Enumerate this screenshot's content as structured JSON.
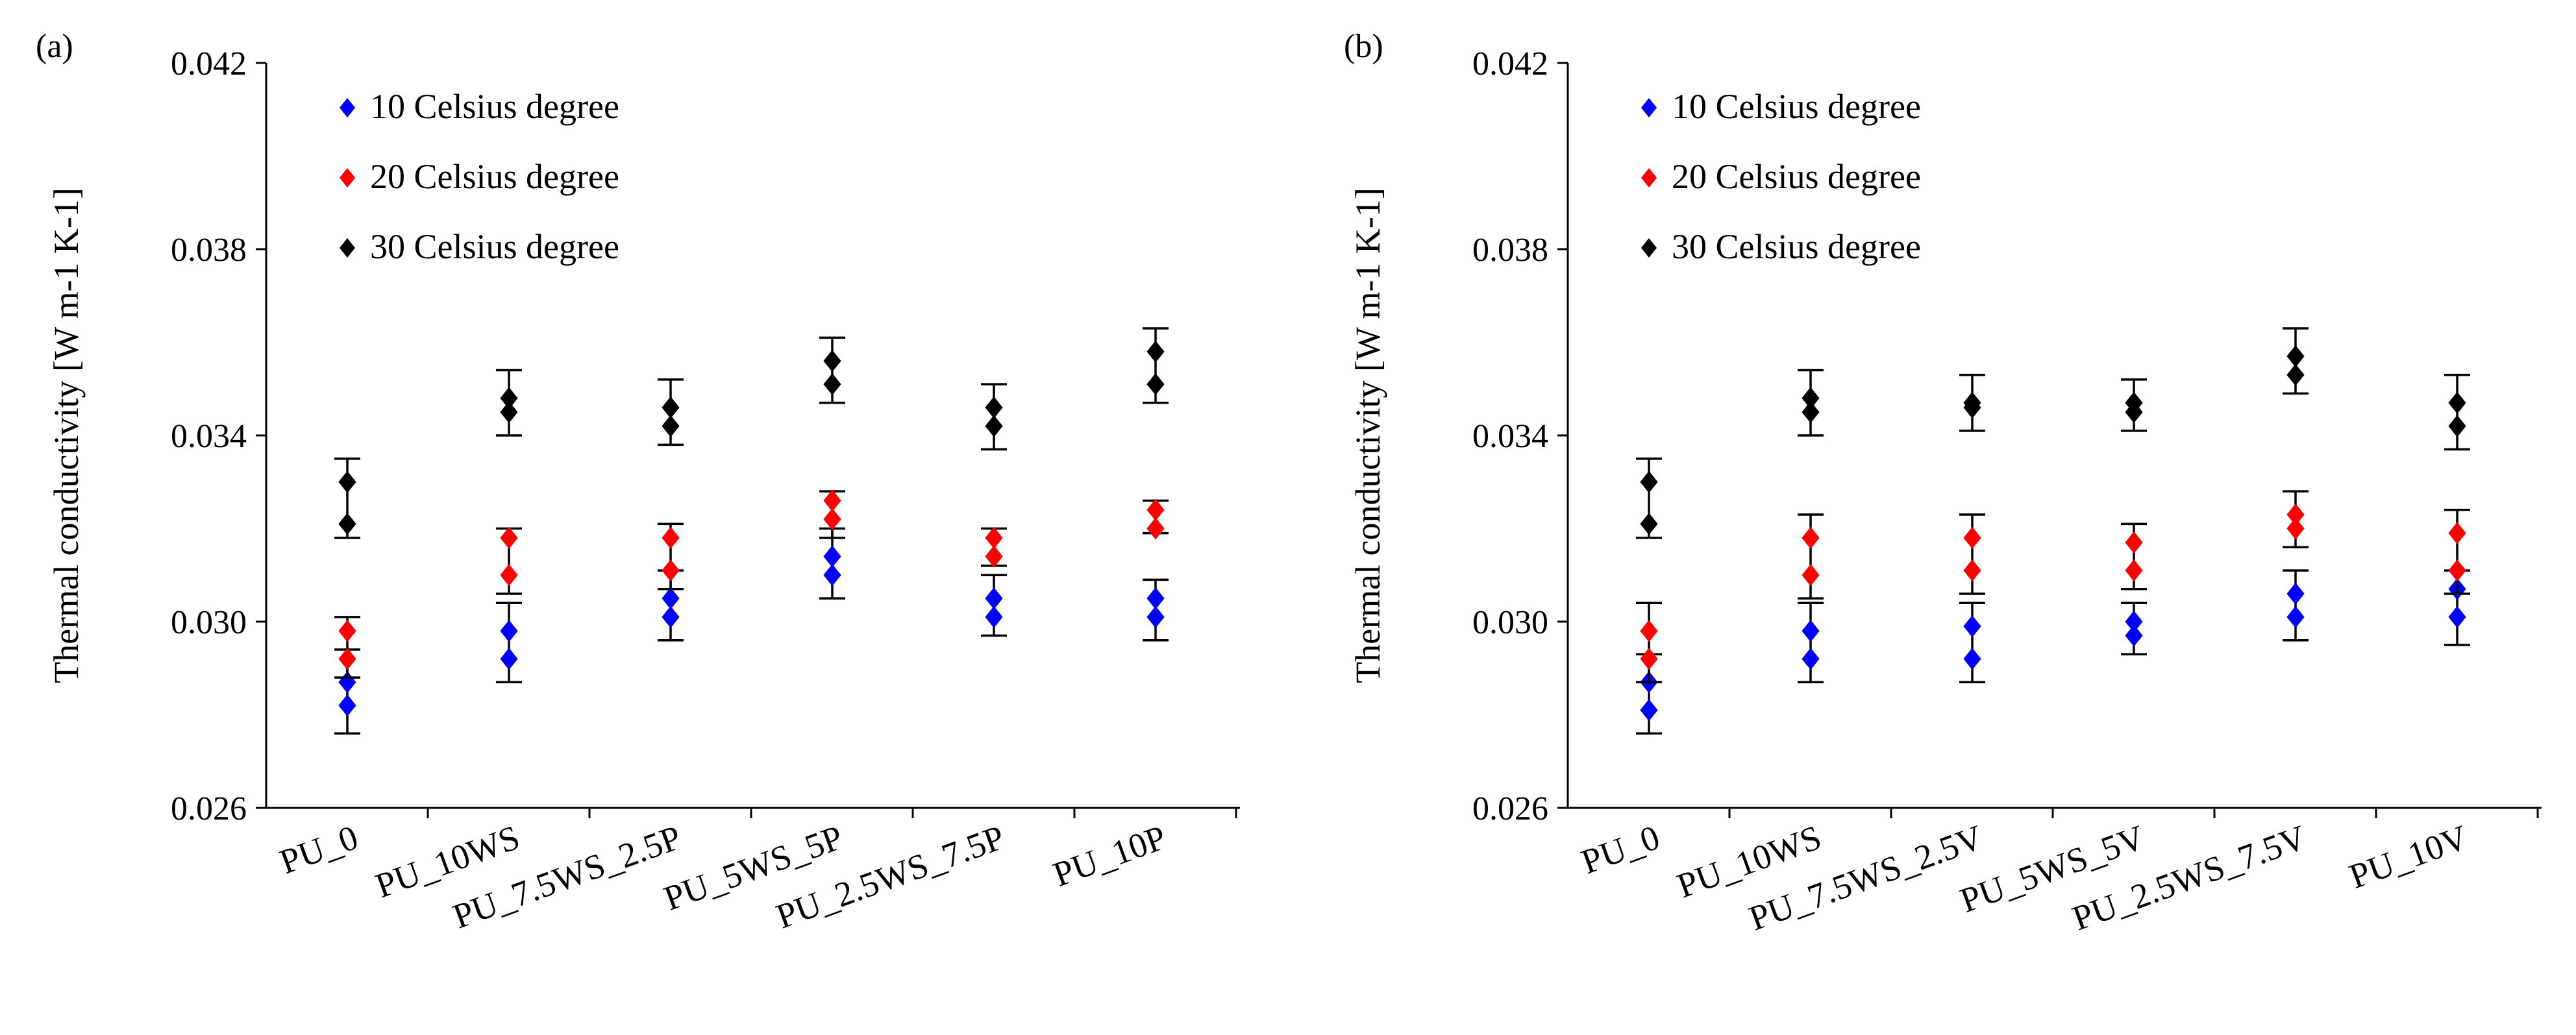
{
  "chart_data": [
    {
      "type": "scatter",
      "panel_label": "(a)",
      "title": "",
      "ylabel": "Thermal conductivity [W m-1 K-1]",
      "xlabel": "",
      "ylim": [
        0.026,
        0.042
      ],
      "yticks": [
        "0.026",
        "0.030",
        "0.034",
        "0.038",
        "0.042"
      ],
      "ytick_values": [
        0.026,
        0.03,
        0.034,
        0.038,
        0.042
      ],
      "categories": [
        "PU_0",
        "PU_10WS",
        "PU_7.5WS_2.5P",
        "PU_5WS_5P",
        "PU_2.5WS_7.5P",
        "PU_10P"
      ],
      "legend": {
        "position": "top-left"
      },
      "series": [
        {
          "name": "10 Celsius degree",
          "color": "#0000ff",
          "points": [
            [
              0.0282,
              0.0287
            ],
            [
              0.0292,
              0.0298
            ],
            [
              0.0301,
              0.0305
            ],
            [
              0.031,
              0.0314
            ],
            [
              0.0301,
              0.0305
            ],
            [
              0.0301,
              0.0305
            ]
          ],
          "errors": [
            [
              0.0276,
              0.0294
            ],
            [
              0.0287,
              0.0304
            ],
            [
              0.0296,
              0.0311
            ],
            [
              0.0305,
              0.032
            ],
            [
              0.0297,
              0.031
            ],
            [
              0.0296,
              0.0309
            ]
          ]
        },
        {
          "name": "20 Celsius degree",
          "color": "#ff0000",
          "points": [
            [
              0.0292,
              0.0298
            ],
            [
              0.031,
              0.0318
            ],
            [
              0.0311,
              0.0318
            ],
            [
              0.0322,
              0.0326
            ],
            [
              0.0314,
              0.0318
            ],
            [
              0.032,
              0.0324
            ]
          ],
          "errors": [
            [
              0.0288,
              0.0301
            ],
            [
              0.0306,
              0.032
            ],
            [
              0.0307,
              0.0321
            ],
            [
              0.0318,
              0.0328
            ],
            [
              0.0312,
              0.032
            ],
            [
              0.0319,
              0.0326
            ]
          ]
        },
        {
          "name": "30 Celsius degree",
          "color": "#000000",
          "points": [
            [
              0.0321,
              0.033
            ],
            [
              0.0345,
              0.0348
            ],
            [
              0.0342,
              0.0346
            ],
            [
              0.0351,
              0.0356
            ],
            [
              0.0342,
              0.0346
            ],
            [
              0.0351,
              0.0358
            ]
          ],
          "errors": [
            [
              0.0318,
              0.0335
            ],
            [
              0.034,
              0.0354
            ],
            [
              0.0338,
              0.0352
            ],
            [
              0.0347,
              0.0361
            ],
            [
              0.0337,
              0.0351
            ],
            [
              0.0347,
              0.0363
            ]
          ]
        }
      ]
    },
    {
      "type": "scatter",
      "panel_label": "(b)",
      "title": "",
      "ylabel": "Thermal conductivity [W m-1 K-1]",
      "xlabel": "",
      "ylim": [
        0.026,
        0.042
      ],
      "yticks": [
        "0.026",
        "0.030",
        "0.034",
        "0.038",
        "0.042"
      ],
      "ytick_values": [
        0.026,
        0.03,
        0.034,
        0.038,
        0.042
      ],
      "categories": [
        "PU_0",
        "PU_10WS",
        "PU_7.5WS_2.5V",
        "PU_5WS_5V",
        "PU_2.5WS_7.5V",
        "PU_10V"
      ],
      "legend": {
        "position": "top-left"
      },
      "series": [
        {
          "name": "10 Celsius degree",
          "color": "#0000ff",
          "points": [
            [
              0.0281,
              0.0287
            ],
            [
              0.0292,
              0.0298
            ],
            [
              0.0292,
              0.0299
            ],
            [
              0.0297,
              0.03
            ],
            [
              0.0301,
              0.0306
            ],
            [
              0.0301,
              0.0307
            ]
          ],
          "errors": [
            [
              0.0276,
              0.0293
            ],
            [
              0.0287,
              0.0304
            ],
            [
              0.0287,
              0.0304
            ],
            [
              0.0293,
              0.0304
            ],
            [
              0.0296,
              0.0311
            ],
            [
              0.0295,
              0.0311
            ]
          ]
        },
        {
          "name": "20 Celsius degree",
          "color": "#ff0000",
          "points": [
            [
              0.0292,
              0.0298
            ],
            [
              0.031,
              0.0318
            ],
            [
              0.0311,
              0.0318
            ],
            [
              0.0311,
              0.0317
            ],
            [
              0.032,
              0.0323
            ],
            [
              0.0311,
              0.0319
            ]
          ],
          "errors": [
            [
              0.0287,
              0.0304
            ],
            [
              0.0305,
              0.0323
            ],
            [
              0.0306,
              0.0323
            ],
            [
              0.0307,
              0.0321
            ],
            [
              0.0316,
              0.0328
            ],
            [
              0.0306,
              0.0324
            ]
          ]
        },
        {
          "name": "30 Celsius degree",
          "color": "#000000",
          "points": [
            [
              0.0321,
              0.033
            ],
            [
              0.0345,
              0.0348
            ],
            [
              0.0346,
              0.0347
            ],
            [
              0.0345,
              0.0347
            ],
            [
              0.0353,
              0.0357
            ],
            [
              0.0342,
              0.0347
            ]
          ],
          "errors": [
            [
              0.0318,
              0.0335
            ],
            [
              0.034,
              0.0354
            ],
            [
              0.0341,
              0.0353
            ],
            [
              0.0341,
              0.0352
            ],
            [
              0.0349,
              0.0363
            ],
            [
              0.0337,
              0.0353
            ]
          ]
        }
      ]
    }
  ]
}
